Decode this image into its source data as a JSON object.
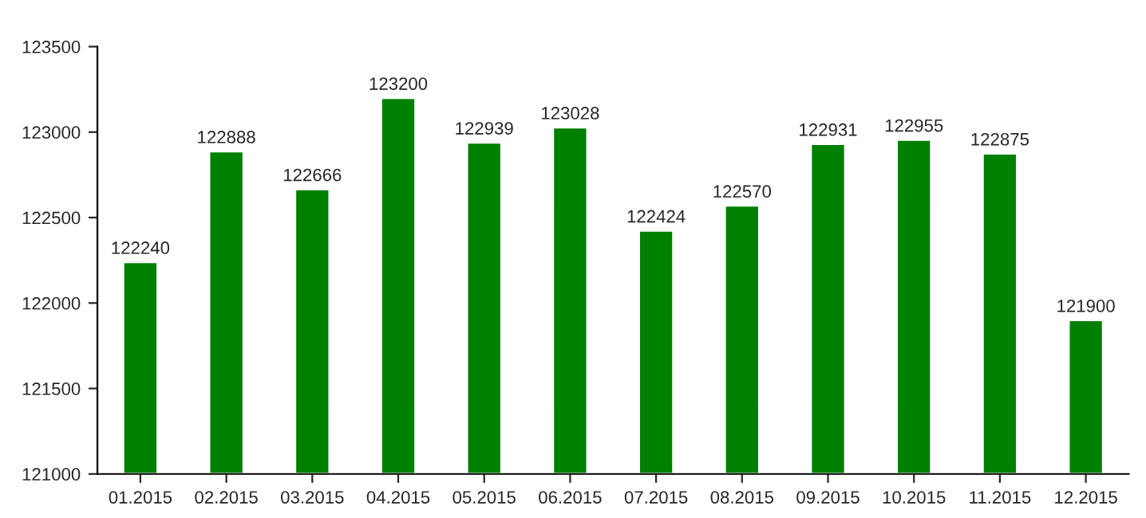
{
  "chart_data": {
    "type": "bar",
    "categories": [
      "01.2015",
      "02.2015",
      "03.2015",
      "04.2015",
      "05.2015",
      "06.2015",
      "07.2015",
      "08.2015",
      "09.2015",
      "10.2015",
      "11.2015",
      "12.2015"
    ],
    "values": [
      122240,
      122888,
      122666,
      123200,
      122939,
      123028,
      122424,
      122570,
      122931,
      122955,
      122875,
      121900
    ],
    "color": "#008000",
    "ylim": [
      121000,
      123500
    ],
    "yticks": [
      121000,
      121500,
      122000,
      122500,
      123000,
      123500
    ],
    "data_labels": true,
    "grid": false
  }
}
